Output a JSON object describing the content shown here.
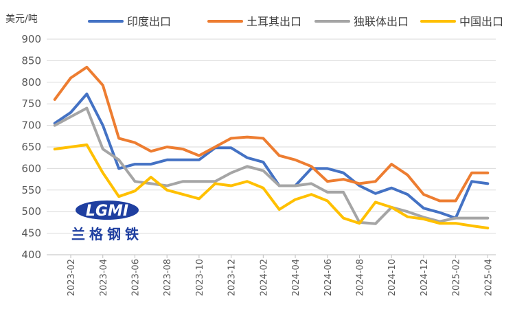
{
  "chart_data": {
    "type": "line",
    "unit_label": "美元/吨",
    "ylim": [
      400,
      900
    ],
    "yticks": [
      400,
      450,
      500,
      550,
      600,
      650,
      700,
      750,
      800,
      850,
      900
    ],
    "x": [
      "2023-01",
      "2023-02",
      "2023-03",
      "2023-04",
      "2023-05",
      "2023-06",
      "2023-07",
      "2023-08",
      "2023-09",
      "2023-10",
      "2023-11",
      "2023-12",
      "2024-01",
      "2024-02",
      "2024-03",
      "2024-04",
      "2024-05",
      "2024-06",
      "2024-07",
      "2024-08",
      "2024-09",
      "2024-10",
      "2024-11",
      "2024-12",
      "2025-01",
      "2025-02",
      "2025-03",
      "2025-04"
    ],
    "xtick_labels": [
      "2023-02",
      "2023-04",
      "2023-06",
      "2023-08",
      "2023-10",
      "2023-12",
      "2024-02",
      "2024-04",
      "2024-06",
      "2024-08",
      "2024-10",
      "2024-12",
      "2025-02",
      "2025-04"
    ],
    "series": [
      {
        "name": "印度出口",
        "color": "#4472C4",
        "values": [
          705,
          730,
          773,
          700,
          600,
          610,
          610,
          620,
          620,
          620,
          648,
          648,
          625,
          615,
          560,
          560,
          600,
          600,
          590,
          560,
          542,
          555,
          540,
          508,
          498,
          485,
          570,
          565
        ]
      },
      {
        "name": "土耳其出口",
        "color": "#ED7D31",
        "values": [
          760,
          810,
          835,
          793,
          670,
          660,
          640,
          650,
          645,
          630,
          650,
          670,
          673,
          670,
          630,
          620,
          605,
          570,
          575,
          565,
          570,
          610,
          585,
          540,
          525,
          525,
          590,
          590
        ]
      },
      {
        "name": "独联体出口",
        "color": "#A5A5A5",
        "values": [
          700,
          720,
          740,
          645,
          620,
          570,
          565,
          560,
          570,
          570,
          570,
          590,
          605,
          595,
          560,
          560,
          565,
          545,
          545,
          475,
          472,
          510,
          500,
          487,
          477,
          485,
          485,
          485
        ]
      },
      {
        "name": "中国出口",
        "color": "#FFC000",
        "values": [
          645,
          650,
          655,
          590,
          535,
          548,
          580,
          550,
          540,
          530,
          565,
          560,
          570,
          555,
          505,
          528,
          540,
          525,
          485,
          473,
          522,
          510,
          488,
          483,
          473,
          473,
          467,
          462
        ]
      }
    ]
  },
  "logo": {
    "text": "LGMI",
    "cn": "兰格钢铁"
  }
}
